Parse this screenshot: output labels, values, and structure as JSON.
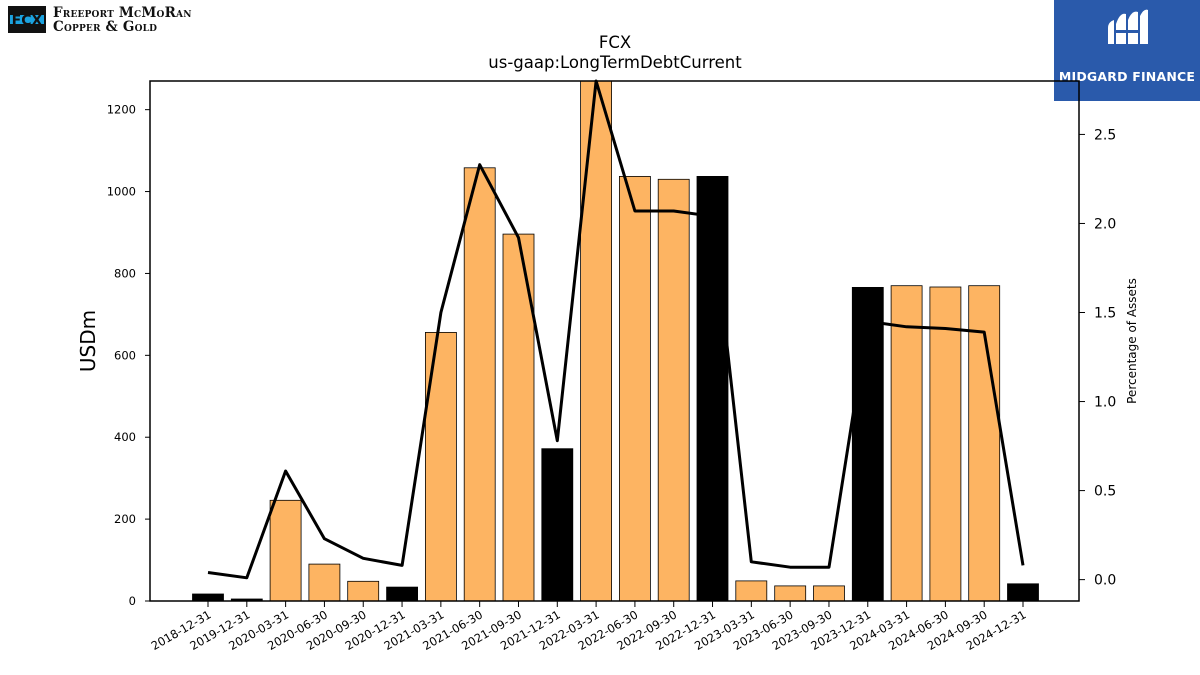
{
  "logo": {
    "line1": "Freeport McMoRan",
    "line2": "Copper & Gold",
    "mark_text": "FCX"
  },
  "brand": {
    "name": "MIDGARD FINANCE",
    "color": "#2a5aab"
  },
  "colors": {
    "bar_default": "#fdb462",
    "bar_highlight": "#000000",
    "line": "#000000"
  },
  "chart_data": {
    "type": "bar",
    "title": "FCX",
    "subtitle": "us-gaap:LongTermDebtCurrent",
    "ylabel": "USDm",
    "y2label": "Percentage of Assets",
    "ylim": [
      0,
      1270
    ],
    "y2lim": [
      -0.12,
      2.8
    ],
    "yticks": [
      0,
      200,
      400,
      600,
      800,
      1000,
      1200
    ],
    "y2ticks": [
      "0.0",
      "0.5",
      "1.0",
      "1.5",
      "2.0",
      "2.5"
    ],
    "categories": [
      "2018-12-31",
      "2019-12-31",
      "2020-03-31",
      "2020-06-30",
      "2020-09-30",
      "2020-12-31",
      "2021-03-31",
      "2021-06-30",
      "2021-09-30",
      "2021-12-31",
      "2022-03-31",
      "2022-06-30",
      "2022-09-30",
      "2022-12-31",
      "2023-03-31",
      "2023-06-30",
      "2023-09-30",
      "2023-12-31",
      "2024-03-31",
      "2024-06-30",
      "2024-09-30",
      "2024-12-31"
    ],
    "series": [
      {
        "values": [
          17,
          5,
          246,
          90,
          48,
          34,
          656,
          1058,
          896,
          372,
          1275,
          1037,
          1030,
          1037,
          49,
          37,
          37,
          766,
          770,
          767,
          770,
          42
        ],
        "highlight": [
          true,
          true,
          false,
          false,
          false,
          true,
          false,
          false,
          false,
          true,
          false,
          false,
          false,
          true,
          false,
          false,
          false,
          true,
          false,
          false,
          false,
          true
        ],
        "axis": "left"
      },
      {
        "values": [
          0.04,
          0.01,
          0.61,
          0.23,
          0.12,
          0.08,
          1.5,
          2.33,
          1.92,
          0.78,
          2.81,
          2.07,
          2.07,
          2.04,
          0.1,
          0.07,
          0.07,
          1.45,
          1.42,
          1.41,
          1.39,
          0.08
        ],
        "axis": "right"
      }
    ]
  }
}
